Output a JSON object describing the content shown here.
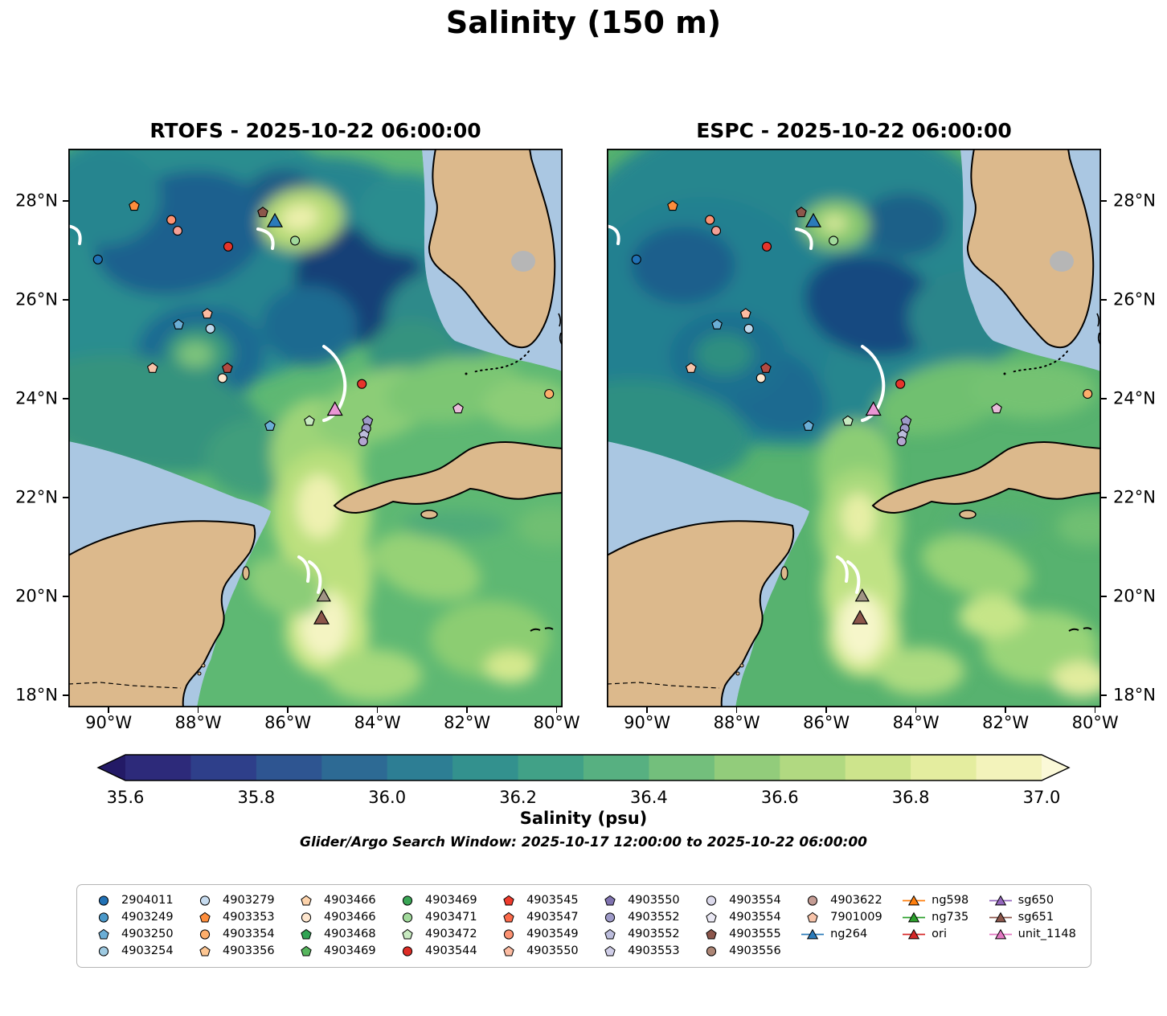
{
  "title": "Salinity (150 m)",
  "chart_data": {
    "type": "heatmap",
    "description": "Two-panel filled-contour map comparison of ocean salinity at 150 m depth over the Gulf of Mexico and northwest Caribbean, with Argo float and glider positions overlaid.",
    "panels": [
      {
        "id": "rtofs",
        "title": "RTOFS - 2025-10-22 06:00:00"
      },
      {
        "id": "espc",
        "title": "ESPC - 2025-10-22 06:00:00"
      }
    ],
    "axes": {
      "lon_range": [
        -90.9,
        -79.87
      ],
      "lat_range": [
        17.76,
        29.06
      ],
      "lon_ticks": [
        {
          "value": -90,
          "label": "90°W"
        },
        {
          "value": -88,
          "label": "88°W"
        },
        {
          "value": -86,
          "label": "86°W"
        },
        {
          "value": -84,
          "label": "84°W"
        },
        {
          "value": -82,
          "label": "82°W"
        },
        {
          "value": -80,
          "label": "80°W"
        }
      ],
      "lat_ticks": [
        {
          "value": 28,
          "label": "28°N"
        },
        {
          "value": 26,
          "label": "26°N"
        },
        {
          "value": 24,
          "label": "24°N"
        },
        {
          "value": 22,
          "label": "22°N"
        },
        {
          "value": 20,
          "label": "20°N"
        },
        {
          "value": 18,
          "label": "18°N"
        }
      ]
    },
    "colorbar": {
      "label": "Salinity (psu)",
      "range": [
        35.6,
        37.0
      ],
      "tick_values": [
        35.6,
        35.8,
        36.0,
        36.2,
        36.4,
        36.6,
        36.8,
        37.0
      ],
      "tick_labels": [
        "35.6",
        "35.8",
        "36.0",
        "36.2",
        "36.4",
        "36.6",
        "36.8",
        "37.0"
      ],
      "extend_colors": {
        "min": "#231a66",
        "max": "#fbf9d8"
      },
      "segment_colors": [
        "#2d2a7a",
        "#2e3f8a",
        "#2e5591",
        "#2d6a94",
        "#2d7e94",
        "#33918e",
        "#41a187",
        "#57b081",
        "#73bf7c",
        "#92cc7b",
        "#b1d981",
        "#cde48c",
        "#e4ed9f",
        "#f3f3bb"
      ]
    },
    "annotation": "Glider/Argo Search Window: 2025-10-17 12:00:00 to 2025-10-22 06:00:00",
    "legend": [
      {
        "label": "2904011",
        "marker": "circle",
        "color": "#2171b5"
      },
      {
        "label": "4903249",
        "marker": "circle",
        "color": "#4a98c9"
      },
      {
        "label": "4903250",
        "marker": "pentagon",
        "color": "#6baed6"
      },
      {
        "label": "4903254",
        "marker": "circle",
        "color": "#9ecae1"
      },
      {
        "label": "4903279",
        "marker": "circle",
        "color": "#c6dbef"
      },
      {
        "label": "4903353",
        "marker": "pentagon",
        "color": "#fd8d3c"
      },
      {
        "label": "4903354",
        "marker": "circle",
        "color": "#fdae6b"
      },
      {
        "label": "4903356",
        "marker": "pentagon",
        "color": "#fdc692"
      },
      {
        "label": "4903466",
        "marker": "pentagon",
        "color": "#fdd3ab"
      },
      {
        "label": "4903466",
        "marker": "circle",
        "color": "#fee6ce"
      },
      {
        "label": "4903468",
        "marker": "pentagon",
        "color": "#31a354"
      },
      {
        "label": "4903469",
        "marker": "pentagon",
        "color": "#57b65e"
      },
      {
        "label": "4903469",
        "marker": "circle",
        "color": "#3aa655"
      },
      {
        "label": "4903471",
        "marker": "circle",
        "color": "#a1d99b"
      },
      {
        "label": "4903472",
        "marker": "pentagon",
        "color": "#c7e9c0"
      },
      {
        "label": "4903544",
        "marker": "circle",
        "color": "#de2d26"
      },
      {
        "label": "4903545",
        "marker": "pentagon",
        "color": "#ef3b2c"
      },
      {
        "label": "4903547",
        "marker": "pentagon",
        "color": "#fb6a4a"
      },
      {
        "label": "4903549",
        "marker": "circle",
        "color": "#fc9272"
      },
      {
        "label": "4903550",
        "marker": "pentagon",
        "color": "#fcbba1"
      },
      {
        "label": "4903550",
        "marker": "pentagon",
        "color": "#8073b0"
      },
      {
        "label": "4903552",
        "marker": "circle",
        "color": "#9e9ac8"
      },
      {
        "label": "4903552",
        "marker": "pentagon",
        "color": "#bcbddc"
      },
      {
        "label": "4903553",
        "marker": "pentagon",
        "color": "#d0cee8"
      },
      {
        "label": "4903554",
        "marker": "circle",
        "color": "#dcdaec"
      },
      {
        "label": "4903554",
        "marker": "pentagon",
        "color": "#eae8f4"
      },
      {
        "label": "4903555",
        "marker": "pentagon",
        "color": "#8c564b"
      },
      {
        "label": "4903556",
        "marker": "circle",
        "color": "#ad8676"
      },
      {
        "label": "4903622",
        "marker": "circle",
        "color": "#c49c94"
      },
      {
        "label": "7901009",
        "marker": "pentagon",
        "color": "#f7c3a9"
      },
      {
        "label": "ng264",
        "marker": "triangle-line",
        "color": "#2b7bba"
      },
      {
        "label": "ng598",
        "marker": "triangle-line",
        "color": "#ff7f0e"
      },
      {
        "label": "ng735",
        "marker": "triangle-line",
        "color": "#2ca02c"
      },
      {
        "label": "ori",
        "marker": "triangle-line",
        "color": "#d62728"
      },
      {
        "label": "sg650",
        "marker": "triangle-line",
        "color": "#9467bd"
      },
      {
        "label": "sg651",
        "marker": "triangle-line",
        "color": "#8c564b"
      },
      {
        "label": "unit_1148",
        "marker": "triangle-line",
        "color": "#e377c2"
      }
    ],
    "markers": [
      {
        "lon": -89.43,
        "lat": 27.9,
        "shape": "pentagon",
        "color": "#fd8d3c"
      },
      {
        "lon": -88.6,
        "lat": 27.62,
        "shape": "circle",
        "color": "#fc9272"
      },
      {
        "lon": -88.46,
        "lat": 27.4,
        "shape": "circle",
        "color": "#f4a096"
      },
      {
        "lon": -86.56,
        "lat": 27.77,
        "shape": "pentagon",
        "color": "#8c564b"
      },
      {
        "lon": -86.29,
        "lat": 27.58,
        "shape": "triangle",
        "color": "#2b7bba",
        "size": 9
      },
      {
        "lon": -85.84,
        "lat": 27.2,
        "shape": "circle",
        "color": "#a1d99b"
      },
      {
        "lon": -87.33,
        "lat": 27.08,
        "shape": "circle",
        "color": "#e6352b"
      },
      {
        "lon": -90.24,
        "lat": 26.82,
        "shape": "circle",
        "color": "#2171b5"
      },
      {
        "lon": -87.8,
        "lat": 25.72,
        "shape": "pentagon",
        "color": "#fcbba1"
      },
      {
        "lon": -88.44,
        "lat": 25.5,
        "shape": "pentagon",
        "color": "#6baed6"
      },
      {
        "lon": -87.73,
        "lat": 25.42,
        "shape": "circle",
        "color": "#bdd7eb"
      },
      {
        "lon": -89.02,
        "lat": 24.62,
        "shape": "pentagon",
        "color": "#f7c3a9"
      },
      {
        "lon": -87.35,
        "lat": 24.62,
        "shape": "pentagon",
        "color": "#b04a42"
      },
      {
        "lon": -87.46,
        "lat": 24.42,
        "shape": "circle",
        "color": "#fee6ce"
      },
      {
        "lon": -84.35,
        "lat": 24.3,
        "shape": "circle",
        "color": "#e6352b"
      },
      {
        "lon": -80.17,
        "lat": 24.1,
        "shape": "circle",
        "color": "#fdae6b"
      },
      {
        "lon": -82.2,
        "lat": 23.8,
        "shape": "pentagon",
        "color": "#e8bcd9"
      },
      {
        "lon": -84.95,
        "lat": 23.77,
        "shape": "triangle",
        "color": "#ea96d5",
        "size": 9
      },
      {
        "lon": -85.52,
        "lat": 23.55,
        "shape": "pentagon",
        "color": "#c7e9c0"
      },
      {
        "lon": -86.4,
        "lat": 23.45,
        "shape": "pentagon",
        "color": "#6baed6"
      },
      {
        "lon": -84.22,
        "lat": 23.55,
        "shape": "pentagon",
        "color": "#9e9ac8"
      },
      {
        "lon": -84.25,
        "lat": 23.4,
        "shape": "circle",
        "color": "#9e9ac8"
      },
      {
        "lon": -84.3,
        "lat": 23.27,
        "shape": "pentagon",
        "color": "#bcbddc"
      },
      {
        "lon": -84.32,
        "lat": 23.14,
        "shape": "circle",
        "color": "#b3a6d0"
      },
      {
        "lon": -85.2,
        "lat": 20.0,
        "shape": "triangle",
        "color": "#a09484",
        "size": 8
      },
      {
        "lon": -85.25,
        "lat": 19.55,
        "shape": "triangle",
        "color": "#8c564b",
        "size": 9
      }
    ]
  }
}
